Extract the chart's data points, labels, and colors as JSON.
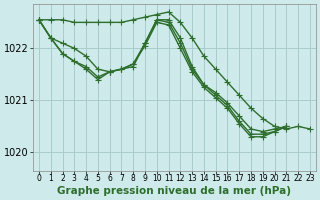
{
  "background_color": "#ceeaea",
  "grid_color": "#aacccc",
  "line_color": "#2d6e2d",
  "marker_style": "+",
  "marker_size": 4,
  "linewidth": 1.0,
  "xlabel": "Graphe pression niveau de la mer (hPa)",
  "xlabel_fontsize": 7.5,
  "ylabel_fontsize": 7,
  "ytick_labels": [
    "1020",
    "1021",
    "1022"
  ],
  "yticks": [
    1020,
    1021,
    1022
  ],
  "ylim": [
    1019.65,
    1022.85
  ],
  "xlim": [
    -0.5,
    23.5
  ],
  "xticks": [
    0,
    1,
    2,
    3,
    4,
    5,
    6,
    7,
    8,
    9,
    10,
    11,
    12,
    13,
    14,
    15,
    16,
    17,
    18,
    19,
    20,
    21,
    22,
    23
  ],
  "series": [
    [
      1022.55,
      1022.55,
      1022.55,
      1022.5,
      1022.5,
      1022.5,
      1022.5,
      1022.5,
      1022.55,
      1022.6,
      1022.65,
      1022.7,
      1022.5,
      1022.2,
      1021.85,
      1021.6,
      1021.35,
      1021.1,
      1020.85,
      1020.65,
      1020.5,
      1020.45,
      1020.5,
      1020.45
    ],
    [
      1022.55,
      1022.2,
      1022.1,
      1022.0,
      1021.85,
      1021.6,
      1021.55,
      1021.6,
      1021.65,
      1022.1,
      1022.55,
      1022.55,
      1022.2,
      1021.65,
      1021.3,
      1021.15,
      1020.95,
      1020.7,
      1020.45,
      1020.4,
      1020.45,
      1020.5,
      null,
      null
    ],
    [
      1022.55,
      1022.2,
      1021.9,
      1021.75,
      1021.6,
      1021.4,
      1021.55,
      1021.6,
      1021.7,
      1022.1,
      1022.55,
      1022.5,
      1022.1,
      1021.6,
      1021.3,
      1021.1,
      1020.9,
      1020.6,
      1020.35,
      1020.35,
      1020.4,
      1020.5,
      null,
      null
    ],
    [
      1022.55,
      1022.2,
      1021.9,
      1021.75,
      1021.65,
      1021.45,
      1021.55,
      1021.6,
      1021.7,
      1022.05,
      1022.5,
      1022.45,
      1022.0,
      1021.55,
      1021.25,
      1021.05,
      1020.85,
      1020.55,
      1020.3,
      1020.3,
      1020.4,
      1020.5,
      null,
      null
    ]
  ]
}
